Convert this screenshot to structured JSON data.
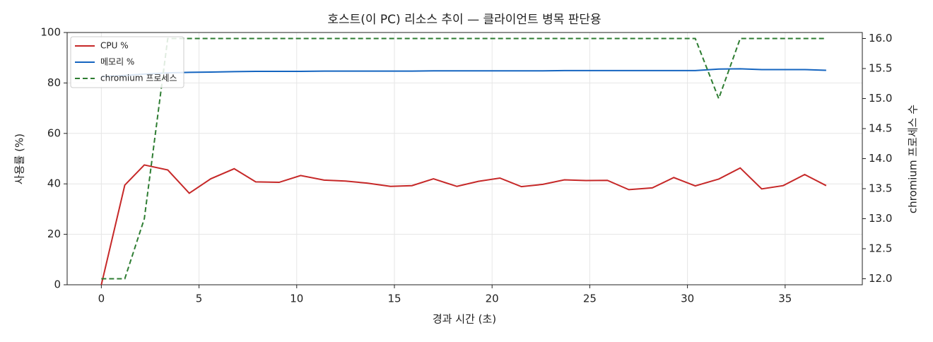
{
  "chart_data": {
    "type": "line",
    "title": "호스트(이 PC) 리소스 추이 — 클라이언트 병목 판단용",
    "xlabel": "경과 시간 (초)",
    "ylabel": "사용률 (%)",
    "y2label": "chromium 프로세스 수",
    "x": [
      0,
      1.2,
      2.2,
      3.4,
      4.5,
      5.6,
      6.8,
      7.9,
      9.1,
      10.2,
      11.4,
      12.5,
      13.6,
      14.8,
      15.9,
      17.0,
      18.2,
      19.3,
      20.4,
      21.5,
      22.6,
      23.7,
      24.8,
      25.9,
      27.0,
      28.2,
      29.3,
      30.4,
      31.6,
      32.7,
      33.8,
      34.9,
      36.0,
      37.1
    ],
    "series": [
      {
        "name": "CPU %",
        "color": "#c62828",
        "linestyle": "solid",
        "values": [
          0,
          39.5,
          47.5,
          45.5,
          36.3,
          42,
          46,
          40.8,
          40.6,
          43.3,
          41.5,
          41.1,
          40.3,
          39,
          39.3,
          42,
          39,
          41,
          42.3,
          38.9,
          39.8,
          41.6,
          41.3,
          41.4,
          37.7,
          38.4,
          42.5,
          39.2,
          41.9,
          46.3,
          38,
          39.3,
          43.7,
          39.3
        ]
      },
      {
        "name": "메모리 %",
        "color": "#1565c0",
        "linestyle": "solid",
        "values": [
          82.5,
          83,
          83.5,
          84,
          84.2,
          84.3,
          84.5,
          84.6,
          84.6,
          84.6,
          84.7,
          84.7,
          84.7,
          84.7,
          84.7,
          84.8,
          84.8,
          84.8,
          84.8,
          84.8,
          84.8,
          84.9,
          84.9,
          84.9,
          84.9,
          84.9,
          84.9,
          84.9,
          85.5,
          85.6,
          85.3,
          85.3,
          85.3,
          85.0
        ]
      },
      {
        "name": "chromium 프로세스",
        "color": "#2e7d32",
        "linestyle": "dashed",
        "axis": "y2",
        "values": [
          12,
          12,
          13,
          16,
          16,
          16,
          16,
          16,
          16,
          16,
          16,
          16,
          16,
          16,
          16,
          16,
          16,
          16,
          16,
          16,
          16,
          16,
          16,
          16,
          16,
          16,
          16,
          16,
          15,
          16,
          16,
          16,
          16,
          16
        ]
      }
    ],
    "xlim": [
      -1.75,
      38.95
    ],
    "xticks": [
      0,
      5,
      10,
      15,
      20,
      25,
      30,
      35
    ],
    "ylim": [
      0,
      100
    ],
    "yticks": [
      0,
      20,
      40,
      60,
      80,
      100
    ],
    "y2lim": [
      11.9,
      16.1
    ],
    "y2ticks": [
      {
        "value": 12,
        "label": "12.0"
      },
      12.5,
      {
        "value": 13,
        "label": "13.0"
      },
      13.5,
      {
        "value": 14,
        "label": "14.0"
      },
      14.5,
      {
        "value": 15,
        "label": "15.0"
      },
      15.5,
      {
        "value": 16,
        "label": "16.0"
      }
    ],
    "grid": true,
    "legend": "upper left"
  }
}
